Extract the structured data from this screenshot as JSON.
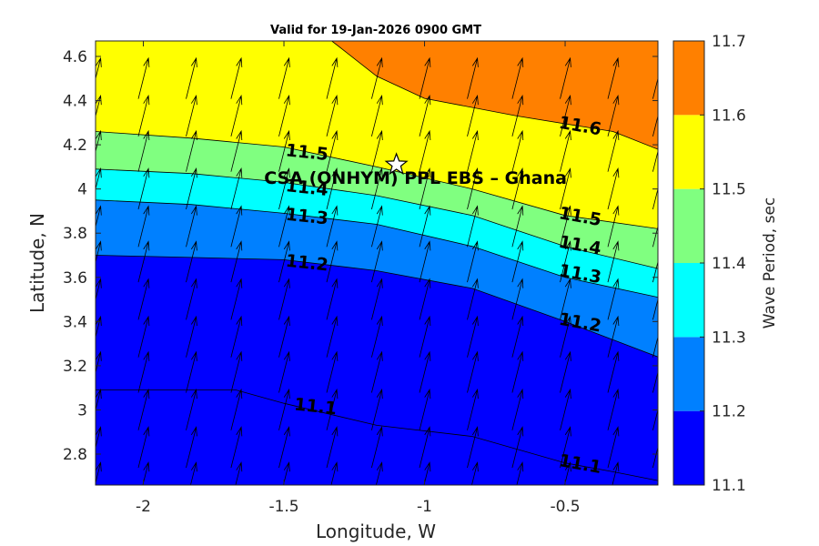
{
  "chart_data": {
    "type": "heatmap",
    "title": "Valid for 19-Jan-2026 0900 GMT",
    "xlabel": "Longitude, W",
    "ylabel": "Latitude, N",
    "xlim": [
      -2.17,
      -0.17
    ],
    "ylim": [
      2.66,
      4.67
    ],
    "xticks": [
      -2,
      -1.5,
      -1,
      -0.5
    ],
    "xtick_labels": [
      "-2",
      "-1.5",
      "-1",
      "-0.5"
    ],
    "yticks": [
      2.8,
      3,
      3.2,
      3.4,
      3.6,
      3.8,
      4,
      4.2,
      4.4,
      4.6
    ],
    "ytick_labels": [
      "2.8",
      "3",
      "3.2",
      "3.4",
      "3.6",
      "3.8",
      "4",
      "4.2",
      "4.4",
      "4.6"
    ],
    "colorbar": {
      "label": "Wave Period, sec",
      "ticks": [
        "11.1",
        "11.2",
        "11.3",
        "11.4",
        "11.5",
        "11.6",
        "11.7"
      ],
      "levels": [
        11.1,
        11.2,
        11.3,
        11.4,
        11.5,
        11.6,
        11.7
      ],
      "colors": [
        "#0000ff",
        "#0080ff",
        "#00ffff",
        "#80ff80",
        "#ffff00",
        "#ff8000"
      ]
    },
    "contour_lines": [
      {
        "level": 11.1,
        "points": [
          [
            -2.17,
            3.09
          ],
          [
            -1.67,
            3.09
          ],
          [
            -1.5,
            3.03
          ],
          [
            -1.17,
            2.93
          ],
          [
            -0.83,
            2.88
          ],
          [
            -0.5,
            2.76
          ],
          [
            -0.33,
            2.72
          ],
          [
            -0.17,
            2.68
          ]
        ]
      },
      {
        "level": 11.2,
        "points": [
          [
            -2.17,
            3.7
          ],
          [
            -1.83,
            3.69
          ],
          [
            -1.5,
            3.68
          ],
          [
            -1.17,
            3.63
          ],
          [
            -0.83,
            3.55
          ],
          [
            -0.5,
            3.4
          ],
          [
            -0.17,
            3.24
          ]
        ]
      },
      {
        "level": 11.3,
        "points": [
          [
            -2.17,
            3.95
          ],
          [
            -1.83,
            3.93
          ],
          [
            -1.5,
            3.89
          ],
          [
            -1.17,
            3.84
          ],
          [
            -0.83,
            3.74
          ],
          [
            -0.5,
            3.6
          ],
          [
            -0.17,
            3.51
          ]
        ]
      },
      {
        "level": 11.4,
        "points": [
          [
            -2.17,
            4.09
          ],
          [
            -1.83,
            4.07
          ],
          [
            -1.5,
            4.03
          ],
          [
            -1.17,
            3.97
          ],
          [
            -0.83,
            3.88
          ],
          [
            -0.5,
            3.74
          ],
          [
            -0.17,
            3.64
          ]
        ]
      },
      {
        "level": 11.5,
        "points": [
          [
            -2.17,
            4.26
          ],
          [
            -1.83,
            4.23
          ],
          [
            -1.5,
            4.19
          ],
          [
            -1.17,
            4.1
          ],
          [
            -0.83,
            4.0
          ],
          [
            -0.5,
            3.88
          ],
          [
            -0.17,
            3.82
          ]
        ]
      },
      {
        "level": 11.6,
        "points": [
          [
            -1.33,
            4.67
          ],
          [
            -1.17,
            4.51
          ],
          [
            -1.0,
            4.41
          ],
          [
            -0.67,
            4.33
          ],
          [
            -0.33,
            4.26
          ],
          [
            -0.17,
            4.18
          ]
        ]
      }
    ],
    "contour_labels": [
      {
        "text": "11.5",
        "x": -1.42,
        "y": 4.14,
        "angle": 6
      },
      {
        "text": "11.4",
        "x": -1.42,
        "y": 3.98,
        "angle": 6
      },
      {
        "text": "11.3",
        "x": -1.42,
        "y": 3.85,
        "angle": 6
      },
      {
        "text": "11.2",
        "x": -1.42,
        "y": 3.64,
        "angle": 6
      },
      {
        "text": "11.1",
        "x": -1.39,
        "y": 2.99,
        "angle": 6
      },
      {
        "text": "11.6",
        "x": -0.45,
        "y": 4.26,
        "angle": 10
      },
      {
        "text": "11.5",
        "x": -0.45,
        "y": 3.85,
        "angle": 10
      },
      {
        "text": "11.4",
        "x": -0.45,
        "y": 3.72,
        "angle": 10
      },
      {
        "text": "11.3",
        "x": -0.45,
        "y": 3.59,
        "angle": 10
      },
      {
        "text": "11.2",
        "x": -0.45,
        "y": 3.37,
        "angle": 10
      },
      {
        "text": "11.1",
        "x": -0.45,
        "y": 2.73,
        "angle": 10
      }
    ],
    "site": {
      "label": "CSA (ONHYM) PPL EBS  – Ghana",
      "x": -1.1,
      "y": 4.11
    },
    "vectors": {
      "x": [
        -2.17,
        -2.0,
        -1.83,
        -1.67,
        -1.5,
        -1.33,
        -1.17,
        -1.0,
        -0.83,
        -0.67,
        -0.5,
        -0.33,
        -0.17
      ],
      "y": [
        2.67,
        2.83,
        3.0,
        3.17,
        3.33,
        3.5,
        3.67,
        3.83,
        4.0,
        4.17,
        4.33,
        4.5
      ],
      "direction_deg": 14
    }
  }
}
